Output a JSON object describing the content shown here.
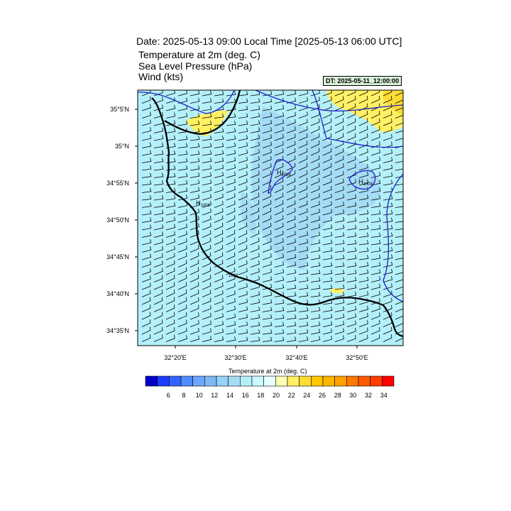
{
  "header": {
    "title": "Date: 2025-05-13  09:00 Local Time [2025-05-13  06:00 UTC]",
    "subtitle_lines": [
      "Temperature at 2m   (deg. C)",
      "Sea Level Pressure   (hPa)",
      "Wind   (kts)"
    ],
    "dt_badge": "DT: 2025-05-11_12:00:00"
  },
  "axes": {
    "lat_labels": [
      "35°5'N",
      "35°N",
      "34°55'N",
      "34°50'N",
      "34°45'N",
      "34°40'N",
      "34°35'N"
    ],
    "lon_labels": [
      "32°20'E",
      "32°30'E",
      "32°40'E",
      "32°50'E"
    ]
  },
  "pressure_labels": [
    {
      "text": "H",
      "sub": "1008"
    },
    {
      "text": "H",
      "sub": "1008"
    },
    {
      "text": "H",
      "sub": "1008"
    },
    {
      "text": "1008"
    }
  ],
  "colorbar": {
    "title": "Temperature at 2m  (deg. C)",
    "ticks": [
      "6",
      "8",
      "10",
      "12",
      "14",
      "16",
      "18",
      "20",
      "22",
      "24",
      "26",
      "28",
      "30",
      "32",
      "34"
    ],
    "colors": [
      "#0000c8",
      "#1e3cff",
      "#3264ff",
      "#508cff",
      "#6ea5ff",
      "#7eb9f5",
      "#96d2fa",
      "#a5dcf5",
      "#b4f0fa",
      "#c8faff",
      "#e6ffff",
      "#ffffb4",
      "#fff064",
      "#ffdc32",
      "#ffc800",
      "#ffb400",
      "#ffa000",
      "#ff7800",
      "#ff5a00",
      "#ff3c00",
      "#ff0000"
    ]
  },
  "colors": {
    "land_base": "#b4f0fa",
    "land_cool": "#a5dcf5",
    "warm": "#fff064",
    "warm_strong": "#ffdc32",
    "isobar": "#1e1ec8",
    "coast": "#000000"
  }
}
